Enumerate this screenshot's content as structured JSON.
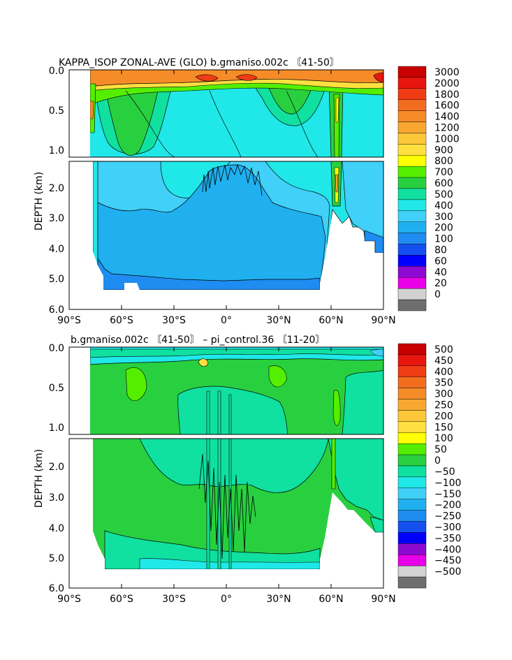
{
  "chart_data": [
    {
      "type": "heatmap",
      "title": "KAPPA_ISOP ZONAL-AVE (GLO) b.gmaniso.002c 〘41-50〙",
      "ylabel": "DEPTH (km)",
      "xlabel": "",
      "x_ticks": [
        "90°S",
        "60°S",
        "30°S",
        "0°",
        "30°N",
        "60°N",
        "90°N"
      ],
      "x_tick_values": [
        -90,
        -60,
        -30,
        0,
        30,
        60,
        90
      ],
      "y_ticks_upper": [
        "0.0",
        "0.5",
        "1.0"
      ],
      "y_ticks_lower": [
        "2.0",
        "3.0",
        "4.0",
        "5.0",
        "6.0"
      ],
      "ylim_km": [
        0,
        6
      ],
      "x_range_deg": [
        -90,
        90
      ],
      "colorbar": {
        "labels": [
          "3000",
          "2000",
          "1800",
          "1600",
          "1400",
          "1200",
          "1000",
          "900",
          "800",
          "700",
          "600",
          "500",
          "400",
          "300",
          "200",
          "100",
          "80",
          "60",
          "40",
          "20",
          "0"
        ],
        "colors": [
          "#c80000",
          "#e8160e",
          "#f03c14",
          "#f26e1e",
          "#f68c28",
          "#f8a830",
          "#fcc83a",
          "#ffe040",
          "#ffff00",
          "#55ee00",
          "#28d040",
          "#10e0a0",
          "#20e8e8",
          "#40d0f8",
          "#20b0f0",
          "#1e8cf0",
          "#1450f0",
          "#0000ff",
          "#8c0ad2",
          "#e800e8",
          "#d2d2d2",
          "#6e6e6e"
        ]
      },
      "regions": [
        {
          "name": "surface maximum layer",
          "value_range": [
            1000,
            3000
          ],
          "lat_range": [
            -77,
            90
          ],
          "depth_km": [
            0,
            0.12
          ]
        },
        {
          "name": "upper ocean band",
          "value_range": [
            600,
            1000
          ],
          "lat_range": [
            -77,
            90
          ],
          "depth_km": [
            0.05,
            0.25
          ]
        },
        {
          "name": "southern mid-latitude lobe",
          "value_range": [
            600,
            700
          ],
          "lat_range": [
            -75,
            -35
          ],
          "depth_km": [
            0.2,
            1.1
          ]
        },
        {
          "name": "northern mid-latitude lobe",
          "value_range": [
            600,
            700
          ],
          "lat_range": [
            20,
            55
          ],
          "depth_km": [
            0.2,
            0.8
          ]
        },
        {
          "name": "north atlantic convection column",
          "value_range": [
            700,
            1400
          ],
          "lat_range": [
            60,
            66
          ],
          "depth_km": [
            0.2,
            2.8
          ]
        },
        {
          "name": "intermediate water",
          "value_range": [
            400,
            500
          ],
          "lat_range": [
            -75,
            90
          ],
          "depth_km": [
            0.5,
            2.6
          ]
        },
        {
          "name": "deep ocean",
          "value_range": [
            200,
            300
          ],
          "lat_range": [
            -75,
            52
          ],
          "depth_km": [
            1.5,
            5.2
          ]
        },
        {
          "name": "abyssal floor layer",
          "value_range": [
            100,
            200
          ],
          "lat_range": [
            -75,
            52
          ],
          "depth_km": [
            4.6,
            5.35
          ]
        }
      ]
    },
    {
      "type": "heatmap",
      "title": "b.gmaniso.002c 〘41-50〙 – pi_control.36 〘11-20〙",
      "ylabel": "DEPTH (km)",
      "xlabel": "",
      "x_ticks": [
        "90°S",
        "60°S",
        "30°S",
        "0°",
        "30°N",
        "60°N",
        "90°N"
      ],
      "x_tick_values": [
        -90,
        -60,
        -30,
        0,
        30,
        60,
        90
      ],
      "y_ticks_upper": [
        "0.0",
        "0.5",
        "1.0"
      ],
      "y_ticks_lower": [
        "2.0",
        "3.0",
        "4.0",
        "5.0",
        "6.0"
      ],
      "ylim_km": [
        0,
        6
      ],
      "x_range_deg": [
        -90,
        90
      ],
      "colorbar": {
        "labels": [
          "500",
          "450",
          "400",
          "350",
          "300",
          "250",
          "200",
          "150",
          "100",
          "50",
          "0",
          "−50",
          "−100",
          "−150",
          "−200",
          "−250",
          "−300",
          "−350",
          "−400",
          "−450",
          "−500"
        ],
        "colors": [
          "#c80000",
          "#e8160e",
          "#f03c14",
          "#f26e1e",
          "#f68c28",
          "#f8a830",
          "#fcc83a",
          "#ffe040",
          "#ffff00",
          "#55ee00",
          "#28d040",
          "#10e0a0",
          "#20e8e8",
          "#40d0f8",
          "#20b0f0",
          "#1e8cf0",
          "#1450f0",
          "#0000ff",
          "#8c0ad2",
          "#e800e8",
          "#d2d2d2",
          "#6e6e6e"
        ]
      },
      "regions": [
        {
          "name": "near-surface anomaly band",
          "value_range": [
            -50,
            50
          ],
          "lat_range": [
            -77,
            90
          ],
          "depth_km": [
            0,
            0.15
          ]
        },
        {
          "name": "upper ocean increase",
          "value_range": [
            0,
            100
          ],
          "lat_range": [
            -77,
            55
          ],
          "depth_km": [
            0.15,
            1.1
          ]
        },
        {
          "name": "subtropical surface maximum",
          "value_range": [
            150,
            200
          ],
          "lat_range": [
            -15,
            -12
          ],
          "depth_km": [
            0.05,
            0.12
          ]
        },
        {
          "name": "northern high-latitude decrease",
          "value_range": [
            -50,
            0
          ],
          "lat_range": [
            55,
            90
          ],
          "depth_km": [
            0.5,
            4.1
          ]
        },
        {
          "name": "deep increase",
          "value_range": [
            0,
            50
          ],
          "lat_range": [
            -75,
            52
          ],
          "depth_km": [
            1.2,
            5.35
          ]
        },
        {
          "name": "abyssal decrease",
          "value_range": [
            -50,
            0
          ],
          "lat_range": [
            -60,
            52
          ],
          "depth_km": [
            4.5,
            5.35
          ]
        }
      ]
    }
  ]
}
